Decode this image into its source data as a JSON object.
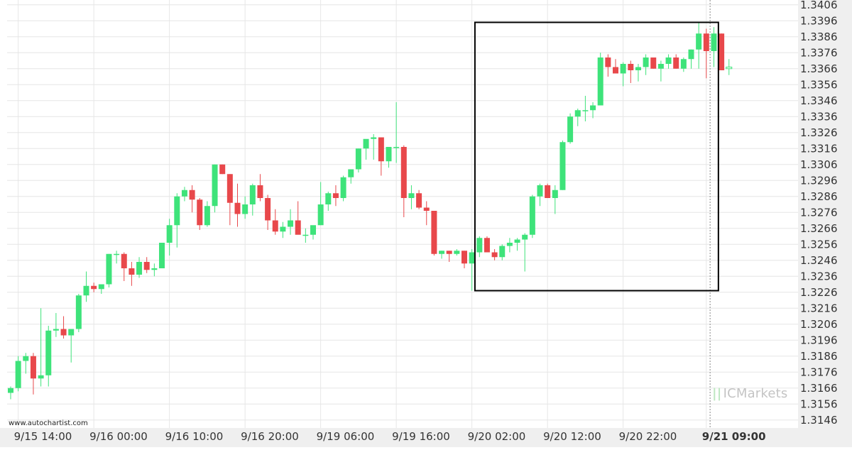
{
  "watermark_text": "www.autochartist.com",
  "brand": {
    "name": "ICMarkets",
    "mark": "||"
  },
  "colors": {
    "bull": "#3ee37a",
    "bear": "#e8484b",
    "grid": "#e6e6e6",
    "axis_bg": "#efefef",
    "frame": "#000000"
  },
  "chart_data": {
    "type": "candlestick",
    "title": "",
    "xlabel": "",
    "ylabel": "",
    "ylim": [
      1.3141,
      1.3409
    ],
    "yticks": [
      "1.3406",
      "1.3396",
      "1.3386",
      "1.3376",
      "1.3366",
      "1.3356",
      "1.3346",
      "1.3336",
      "1.3326",
      "1.3316",
      "1.3306",
      "1.3296",
      "1.3286",
      "1.3276",
      "1.3266",
      "1.3256",
      "1.3246",
      "1.3236",
      "1.3226",
      "1.3216",
      "1.3206",
      "1.3196",
      "1.3186",
      "1.3176",
      "1.3166",
      "1.3156",
      "1.3146"
    ],
    "xticks": [
      {
        "label": "9/15 14:00",
        "index": 1,
        "bold": false
      },
      {
        "label": "9/16 00:00",
        "index": 11,
        "bold": false
      },
      {
        "label": "9/16 10:00",
        "index": 21,
        "bold": false
      },
      {
        "label": "9/16 20:00",
        "index": 31,
        "bold": false
      },
      {
        "label": "9/19 06:00",
        "index": 41,
        "bold": false
      },
      {
        "label": "9/19 16:00",
        "index": 51,
        "bold": false
      },
      {
        "label": "9/20 02:00",
        "index": 61,
        "bold": false
      },
      {
        "label": "9/20 12:00",
        "index": 71,
        "bold": false
      },
      {
        "label": "9/20 22:00",
        "index": 81,
        "bold": false
      },
      {
        "label": "9/21 09:00",
        "index": 92,
        "bold": true
      }
    ],
    "current_time_index": 92,
    "pattern_box": {
      "start_index": 61.4,
      "end_index": 93.6,
      "low": 1.3227,
      "high": 1.3395
    },
    "candles": [
      [
        1.3163,
        1.3167,
        1.3159,
        1.3166
      ],
      [
        1.3166,
        1.3186,
        1.3164,
        1.3183
      ],
      [
        1.3183,
        1.3188,
        1.3175,
        1.3186
      ],
      [
        1.3186,
        1.3188,
        1.3162,
        1.3172
      ],
      [
        1.3172,
        1.3216,
        1.3167,
        1.3174
      ],
      [
        1.3174,
        1.3205,
        1.3167,
        1.3202
      ],
      [
        1.3202,
        1.3213,
        1.3198,
        1.3203
      ],
      [
        1.3203,
        1.3211,
        1.3197,
        1.3199
      ],
      [
        1.3199,
        1.3203,
        1.3182,
        1.3203
      ],
      [
        1.3203,
        1.3225,
        1.3201,
        1.3224
      ],
      [
        1.3224,
        1.3239,
        1.322,
        1.323
      ],
      [
        1.323,
        1.3232,
        1.3226,
        1.3228
      ],
      [
        1.3228,
        1.3231,
        1.3225,
        1.3231
      ],
      [
        1.3231,
        1.325,
        1.3229,
        1.325
      ],
      [
        1.325,
        1.3252,
        1.3244,
        1.325
      ],
      [
        1.325,
        1.3251,
        1.3233,
        1.3241
      ],
      [
        1.3241,
        1.3245,
        1.323,
        1.3237
      ],
      [
        1.3237,
        1.3248,
        1.3235,
        1.3245
      ],
      [
        1.3245,
        1.3248,
        1.3238,
        1.324
      ],
      [
        1.324,
        1.3244,
        1.3236,
        1.3241
      ],
      [
        1.3241,
        1.3257,
        1.3241,
        1.3257
      ],
      [
        1.3257,
        1.3272,
        1.3249,
        1.3268
      ],
      [
        1.3268,
        1.3288,
        1.3254,
        1.3286
      ],
      [
        1.3286,
        1.3292,
        1.3283,
        1.329
      ],
      [
        1.329,
        1.3293,
        1.3276,
        1.3284
      ],
      [
        1.3284,
        1.3285,
        1.3265,
        1.3268
      ],
      [
        1.3268,
        1.3283,
        1.3267,
        1.328
      ],
      [
        1.328,
        1.3306,
        1.3276,
        1.3306
      ],
      [
        1.3306,
        1.3306,
        1.33,
        1.33
      ],
      [
        1.33,
        1.33,
        1.3268,
        1.3282
      ],
      [
        1.3282,
        1.3294,
        1.3267,
        1.3275
      ],
      [
        1.3275,
        1.3286,
        1.3272,
        1.3281
      ],
      [
        1.3281,
        1.3294,
        1.3274,
        1.3293
      ],
      [
        1.3293,
        1.33,
        1.3283,
        1.3285
      ],
      [
        1.3285,
        1.3287,
        1.3265,
        1.3271
      ],
      [
        1.3271,
        1.3278,
        1.3262,
        1.3264
      ],
      [
        1.3264,
        1.327,
        1.326,
        1.3267
      ],
      [
        1.3267,
        1.3278,
        1.3262,
        1.3271
      ],
      [
        1.3271,
        1.3283,
        1.3263,
        1.3262
      ],
      [
        1.3262,
        1.3266,
        1.3257,
        1.3262
      ],
      [
        1.3262,
        1.3266,
        1.3259,
        1.3268
      ],
      [
        1.3268,
        1.3295,
        1.3268,
        1.3281
      ],
      [
        1.3281,
        1.3289,
        1.3277,
        1.3288
      ],
      [
        1.3288,
        1.3293,
        1.328,
        1.3285
      ],
      [
        1.3285,
        1.3299,
        1.3283,
        1.3298
      ],
      [
        1.3298,
        1.3303,
        1.3294,
        1.3303
      ],
      [
        1.3303,
        1.3316,
        1.3301,
        1.3316
      ],
      [
        1.3316,
        1.3321,
        1.3309,
        1.3322
      ],
      [
        1.3322,
        1.3325,
        1.3309,
        1.3323
      ],
      [
        1.3323,
        1.3323,
        1.3299,
        1.3308
      ],
      [
        1.3308,
        1.3316,
        1.3304,
        1.3317
      ],
      [
        1.3317,
        1.3345,
        1.3307,
        1.3317
      ],
      [
        1.3317,
        1.3318,
        1.3273,
        1.3285
      ],
      [
        1.3285,
        1.3293,
        1.3278,
        1.3288
      ],
      [
        1.3288,
        1.329,
        1.3278,
        1.3279
      ],
      [
        1.3279,
        1.3283,
        1.3268,
        1.3277
      ],
      [
        1.3277,
        1.3277,
        1.3249,
        1.325
      ],
      [
        1.325,
        1.3252,
        1.3247,
        1.3252
      ],
      [
        1.3252,
        1.3252,
        1.3245,
        1.325
      ],
      [
        1.325,
        1.3253,
        1.3249,
        1.3252
      ],
      [
        1.3252,
        1.3252,
        1.3241,
        1.3244
      ],
      [
        1.3244,
        1.3253,
        1.3227,
        1.3251
      ],
      [
        1.3251,
        1.3261,
        1.3248,
        1.326
      ],
      [
        1.326,
        1.3261,
        1.3251,
        1.3251
      ],
      [
        1.3251,
        1.3253,
        1.3246,
        1.3248
      ],
      [
        1.3248,
        1.3256,
        1.3246,
        1.3255
      ],
      [
        1.3255,
        1.326,
        1.3251,
        1.3257
      ],
      [
        1.3257,
        1.326,
        1.3252,
        1.3259
      ],
      [
        1.3259,
        1.3263,
        1.3239,
        1.3262
      ],
      [
        1.3262,
        1.3287,
        1.326,
        1.3286
      ],
      [
        1.3286,
        1.3294,
        1.328,
        1.3293
      ],
      [
        1.3293,
        1.3294,
        1.3285,
        1.3285
      ],
      [
        1.3285,
        1.3293,
        1.3275,
        1.329
      ],
      [
        1.329,
        1.3321,
        1.329,
        1.332
      ],
      [
        1.332,
        1.3338,
        1.3319,
        1.3336
      ],
      [
        1.3336,
        1.3341,
        1.333,
        1.334
      ],
      [
        1.334,
        1.3349,
        1.3333,
        1.334
      ],
      [
        1.334,
        1.3345,
        1.3335,
        1.3343
      ],
      [
        1.3343,
        1.3376,
        1.3343,
        1.3373
      ],
      [
        1.3373,
        1.3375,
        1.3361,
        1.3367
      ],
      [
        1.3367,
        1.3372,
        1.3365,
        1.3363
      ],
      [
        1.3363,
        1.337,
        1.3355,
        1.3369
      ],
      [
        1.3369,
        1.3371,
        1.3357,
        1.3365
      ],
      [
        1.3365,
        1.3369,
        1.3358,
        1.3367
      ],
      [
        1.3367,
        1.3375,
        1.3362,
        1.3373
      ],
      [
        1.3373,
        1.3373,
        1.3366,
        1.3366
      ],
      [
        1.3366,
        1.3371,
        1.3358,
        1.3369
      ],
      [
        1.3369,
        1.3375,
        1.3366,
        1.3373
      ],
      [
        1.3373,
        1.3375,
        1.3366,
        1.3366
      ],
      [
        1.3366,
        1.3373,
        1.3364,
        1.3372
      ],
      [
        1.3372,
        1.3378,
        1.3366,
        1.3378
      ],
      [
        1.3378,
        1.3395,
        1.3366,
        1.3388
      ],
      [
        1.3388,
        1.3391,
        1.336,
        1.3377
      ],
      [
        1.3377,
        1.3392,
        1.3367,
        1.3388
      ],
      [
        1.3388,
        1.3388,
        1.3365,
        1.3365
      ],
      [
        1.3366,
        1.3372,
        1.3362,
        1.3367
      ]
    ]
  }
}
